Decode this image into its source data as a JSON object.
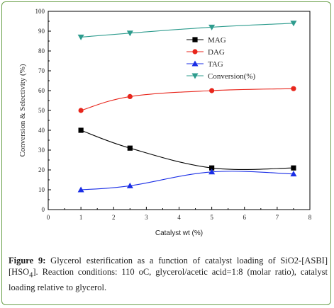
{
  "chart_data": {
    "type": "line",
    "xlabel": "Catalyst wt (%)",
    "ylabel": "Conversion & Selectivity (%)",
    "xlim": [
      0,
      8
    ],
    "ylim": [
      0,
      100
    ],
    "xticks": [
      "0",
      "1",
      "2",
      "3",
      "4",
      "5",
      "6",
      "7",
      "8"
    ],
    "yticks": [
      "0",
      "10",
      "20",
      "30",
      "40",
      "50",
      "60",
      "70",
      "80",
      "90",
      "100"
    ],
    "x": [
      1,
      2.5,
      5,
      7.5
    ],
    "series": [
      {
        "name": "MAG",
        "values": [
          40,
          31,
          21,
          21
        ],
        "color": "#000000",
        "marker": "square"
      },
      {
        "name": "DAG",
        "values": [
          50,
          57,
          60,
          61
        ],
        "color": "#e8261c",
        "marker": "circle"
      },
      {
        "name": "TAG",
        "values": [
          10,
          12,
          19,
          18
        ],
        "color": "#1a2ee6",
        "marker": "triangle-up"
      },
      {
        "name": "Conversion(%)",
        "values": [
          87,
          89,
          92,
          94
        ],
        "color": "#2e9c8e",
        "marker": "triangle-down"
      }
    ],
    "legend": "top-right"
  },
  "caption": {
    "label": "Figure 9:",
    "text_part1": " Glycerol esterification as a function of catalyst loading of SiO2-[ASBI][HSO",
    "subscript": "4",
    "text_part2": "]. Reaction conditions: 110 oC, glycerol/acetic acid=1:8 (molar ratio), catalyst loading relative to glycerol."
  }
}
